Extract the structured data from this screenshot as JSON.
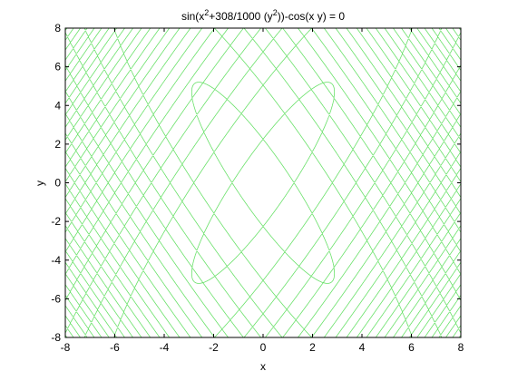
{
  "chart_data": {
    "type": "line",
    "title": "sin(x²+308/1000 (y²))-cos(x y) = 0",
    "title_parts": {
      "part1": "sin(x",
      "sup1": "2",
      "part2": "+308/1000 (y",
      "sup2": "2",
      "part3": "))-cos(x y) = 0"
    },
    "xlabel": "x",
    "ylabel": "y",
    "xlim": [
      -8,
      8
    ],
    "ylim": [
      -8,
      8
    ],
    "xticks": [
      -8,
      -6,
      -4,
      -2,
      0,
      2,
      4,
      6,
      8
    ],
    "yticks": [
      -8,
      -6,
      -4,
      -2,
      0,
      2,
      4,
      6,
      8
    ],
    "grid": false,
    "implicit_equation": {
      "expression": "sin(x^2 + 0.308*y^2) - cos(x*y) = 0",
      "coefficient": 0.308
    },
    "series": [
      {
        "color": "#66e066"
      }
    ]
  }
}
